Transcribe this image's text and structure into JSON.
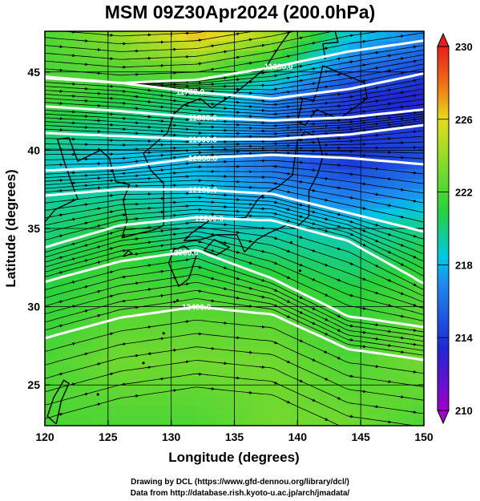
{
  "title": "MSM 09Z30Apr2024 (200.0hPa)",
  "footer": {
    "drawing_credit": "Drawing by DCL (https://www.gfd-dennou.org/library/dcl/)",
    "data_credit": "Data from http://database.rish.kyoto-u.ac.jp/arch/jmadata/"
  },
  "chart_data": {
    "type": "heatmap",
    "title": "MSM 09Z30Apr2024 (200.0hPa)",
    "xlabel": "Longitude (degrees)",
    "ylabel": "Latitude  (degrees)",
    "xlim": [
      120,
      150
    ],
    "ylim": [
      22.4,
      47.6
    ],
    "xticks": [
      120,
      125,
      130,
      135,
      140,
      145,
      150
    ],
    "yticks": [
      25,
      30,
      35,
      40,
      45
    ],
    "grid": true,
    "colorbar": {
      "min": 210,
      "max": 230,
      "tick_labels": [
        210,
        214,
        218,
        222,
        226,
        230
      ],
      "colors": [
        "#a000c8",
        "#1e28d2",
        "#00c8e6",
        "#28d23c",
        "#e6dc1e",
        "#f06e14",
        "#e61e1e"
      ]
    },
    "contour_labels": [
      "11600.0",
      "11700.0",
      "11800.0",
      "11900.0",
      "12000.0",
      "12100.0",
      "12200.0",
      "12300.0",
      "12400.0"
    ],
    "contours": [
      {
        "label": "11600.0",
        "lat": [
          44.7,
          44.3,
          44.5,
          45.3,
          46.3,
          47.0
        ],
        "label_lon": 138.5
      },
      {
        "label": "11700.0",
        "lat": [
          44.6,
          44.3,
          43.7,
          43.3,
          43.9,
          44.9
        ],
        "label_lon": 131.5
      },
      {
        "label": "11800.0",
        "lat": [
          42.8,
          42.5,
          42.1,
          41.9,
          42.1,
          42.6
        ],
        "label_lon": 132.5
      },
      {
        "label": "11900.0",
        "lat": [
          41.1,
          40.9,
          40.7,
          40.7,
          41.0,
          41.6
        ],
        "label_lon": 132.5
      },
      {
        "label": "12000.0",
        "lat": [
          38.7,
          38.9,
          39.5,
          39.7,
          39.5,
          39.1
        ],
        "label_lon": 132.5
      },
      {
        "label": "12100.0",
        "lat": [
          37.1,
          37.5,
          37.5,
          37.2,
          36.0,
          34.8
        ],
        "label_lon": 132.5
      },
      {
        "label": "12200.0",
        "lat": [
          33.8,
          35.2,
          35.7,
          35.5,
          34.2,
          31.5
        ],
        "label_lon": 133.0
      },
      {
        "label": "12300.0",
        "lat": [
          31.6,
          32.9,
          33.6,
          31.8,
          29.4,
          28.7
        ],
        "label_lon": 131.0
      },
      {
        "label": "12400.0",
        "lat": [
          28.0,
          29.3,
          30.0,
          29.5,
          27.3,
          26.6
        ],
        "label_lon": 132.0
      }
    ],
    "contour_lons": [
      120,
      126,
      132,
      138,
      144,
      150
    ],
    "temperature_field": {
      "lons": [
        120,
        126,
        132,
        138,
        144,
        150
      ],
      "lats": [
        47.6,
        43.4,
        39.2,
        35.0,
        30.8,
        26.6,
        22.4
      ],
      "values": [
        [
          222,
          224,
          227,
          225,
          219,
          217
        ],
        [
          222,
          221,
          220,
          217,
          214,
          213
        ],
        [
          219,
          218,
          218,
          216,
          214,
          215
        ],
        [
          220,
          221,
          219,
          219,
          219,
          220
        ],
        [
          221,
          222,
          222,
          222,
          221,
          222
        ],
        [
          222,
          223,
          223,
          223,
          222,
          223
        ],
        [
          222,
          222,
          222,
          223,
          223,
          222
        ]
      ]
    }
  }
}
